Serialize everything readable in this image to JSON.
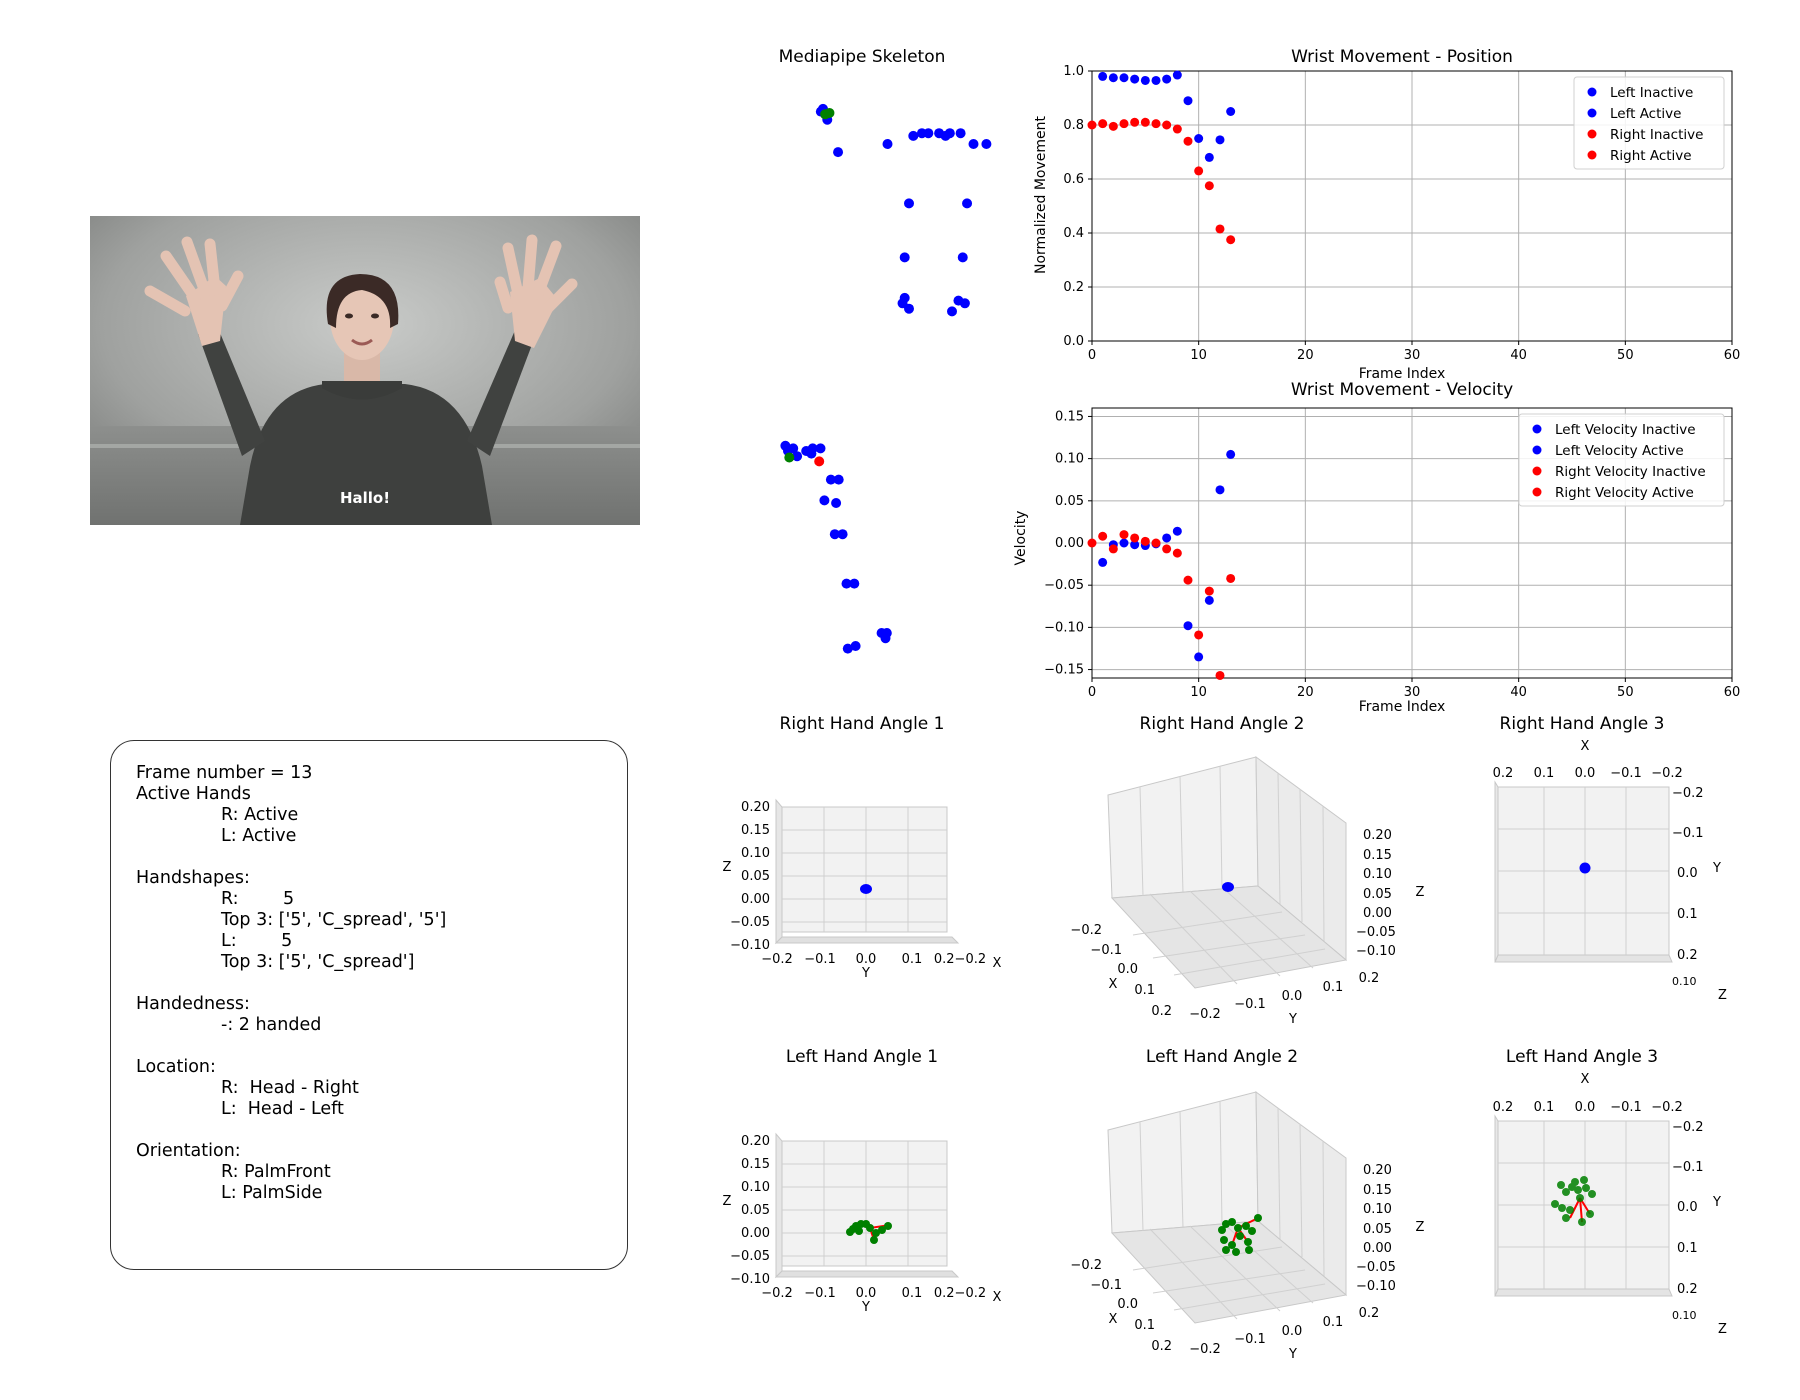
{
  "video": {
    "caption": "Hallo!"
  },
  "info": {
    "frame_number": "Frame number = 13",
    "active_heading": "Active Hands",
    "active_r": "R: Active",
    "active_l": "L: Active",
    "handshapes_heading": "Handshapes:",
    "hs_r": "R:        5",
    "hs_r_top3": "Top 3: ['5', 'C_spread', '5']",
    "hs_l": "L:        5",
    "hs_l_top3": "Top 3: ['5', 'C_spread']",
    "handedness_heading": "Handedness:",
    "handedness_value": "-: 2 handed",
    "location_heading": "Location:",
    "loc_r": "R:  Head - Right",
    "loc_l": "L:  Head - Left",
    "orientation_heading": "Orientation:",
    "ori_r": "R: PalmFront",
    "ori_l": "L: PalmSide"
  },
  "colors": {
    "blue": "#0000ff",
    "red": "#ff0000",
    "green": "#008000",
    "grid": "#b0b0b0",
    "pane": "#f2f2f2"
  },
  "skeleton": {
    "title": "Mediapipe Skeleton",
    "front_points": [
      [
        0.19,
        0.08
      ],
      [
        0.2,
        0.07
      ],
      [
        0.22,
        0.11
      ],
      [
        0.21,
        0.09
      ],
      [
        0.27,
        0.23
      ],
      [
        0.5,
        0.2
      ],
      [
        0.62,
        0.17
      ],
      [
        0.66,
        0.16
      ],
      [
        0.69,
        0.16
      ],
      [
        0.74,
        0.16
      ],
      [
        0.77,
        0.17
      ],
      [
        0.79,
        0.16
      ],
      [
        0.84,
        0.16
      ],
      [
        0.9,
        0.2
      ],
      [
        0.96,
        0.2
      ],
      [
        1.06,
        0.14
      ],
      [
        1.24,
        0.37
      ],
      [
        1.1,
        0.27
      ],
      [
        0.6,
        0.42
      ],
      [
        0.87,
        0.42
      ],
      [
        0.58,
        0.62
      ],
      [
        0.85,
        0.62
      ],
      [
        0.58,
        0.77
      ],
      [
        0.57,
        0.79
      ],
      [
        0.6,
        0.81
      ],
      [
        0.83,
        0.78
      ],
      [
        0.86,
        0.79
      ],
      [
        0.8,
        0.82
      ],
      [
        1.37,
        0.15
      ],
      [
        1.43,
        0.12
      ]
    ],
    "front_green": [
      [
        0.21,
        0.09
      ],
      [
        0.23,
        0.085
      ]
    ],
    "front_red": [
      [
        1.44,
        0.13
      ]
    ],
    "side_points": [
      [
        0.08,
        0.08
      ],
      [
        0.1,
        0.1
      ],
      [
        0.14,
        0.09
      ],
      [
        0.17,
        0.12
      ],
      [
        0.24,
        0.1
      ],
      [
        0.28,
        0.11
      ],
      [
        0.29,
        0.09
      ],
      [
        0.35,
        0.09
      ],
      [
        0.43,
        0.21
      ],
      [
        0.49,
        0.21
      ],
      [
        0.38,
        0.29
      ],
      [
        0.47,
        0.3
      ],
      [
        0.52,
        0.42
      ],
      [
        0.46,
        0.42
      ],
      [
        0.55,
        0.61
      ],
      [
        0.61,
        0.61
      ],
      [
        0.56,
        0.86
      ],
      [
        0.62,
        0.85
      ],
      [
        0.82,
        0.8
      ],
      [
        0.85,
        0.82
      ],
      [
        0.86,
        0.8
      ]
    ],
    "side_green": [
      [
        0.11,
        0.125
      ]
    ],
    "side_red": [
      [
        0.34,
        0.14
      ]
    ]
  },
  "chart_data": [
    {
      "type": "scatter",
      "title": "Wrist Movement - Position",
      "xlabel": "Frame Index",
      "ylabel": "Normalized Movement",
      "xlim": [
        0,
        60
      ],
      "ylim": [
        0,
        1
      ],
      "xticks": [
        0,
        10,
        20,
        30,
        40,
        50,
        60
      ],
      "yticks": [
        0.0,
        0.2,
        0.4,
        0.6,
        0.8,
        1.0
      ],
      "legend": "top-right",
      "series": [
        {
          "name": "Left Inactive",
          "color": "#0000ff",
          "x": [
            1,
            2,
            3,
            4,
            5,
            6,
            7,
            8
          ],
          "y": [
            0.98,
            0.975,
            0.975,
            0.97,
            0.965,
            0.965,
            0.97,
            0.985
          ]
        },
        {
          "name": "Left Active",
          "color": "#0000ff",
          "x": [
            9,
            10,
            11,
            12,
            13
          ],
          "y": [
            0.89,
            0.75,
            0.68,
            0.745,
            0.85
          ]
        },
        {
          "name": "Right Inactive",
          "color": "#ff0000",
          "x": [
            0,
            1,
            2,
            3,
            4,
            5,
            6,
            7,
            8
          ],
          "y": [
            0.8,
            0.805,
            0.795,
            0.805,
            0.81,
            0.81,
            0.805,
            0.8,
            0.785
          ]
        },
        {
          "name": "Right Active",
          "color": "#ff0000",
          "x": [
            9,
            10,
            11,
            12,
            13
          ],
          "y": [
            0.74,
            0.63,
            0.575,
            0.415,
            0.375
          ]
        }
      ]
    },
    {
      "type": "scatter",
      "title": "Wrist Movement - Velocity",
      "xlabel": "Frame Index",
      "ylabel": "Velocity",
      "xlim": [
        0,
        60
      ],
      "ylim": [
        -0.16,
        0.16
      ],
      "xticks": [
        0,
        10,
        20,
        30,
        40,
        50,
        60
      ],
      "yticks": [
        -0.15,
        -0.1,
        -0.05,
        0.0,
        0.05,
        0.1,
        0.15
      ],
      "legend": "top-right",
      "series": [
        {
          "name": "Left Velocity Inactive",
          "color": "#0000ff",
          "x": [
            1,
            2,
            3,
            4,
            5,
            6,
            7,
            8
          ],
          "y": [
            -0.023,
            -0.002,
            0.0,
            -0.002,
            -0.003,
            -0.001,
            0.006,
            0.014
          ]
        },
        {
          "name": "Left Velocity Active",
          "color": "#0000ff",
          "x": [
            9,
            10,
            11,
            12,
            13
          ],
          "y": [
            -0.098,
            -0.135,
            -0.068,
            0.063,
            0.105
          ]
        },
        {
          "name": "Right Velocity Inactive",
          "color": "#ff0000",
          "x": [
            0,
            1,
            2,
            3,
            4,
            5,
            6,
            7,
            8
          ],
          "y": [
            0.0,
            0.008,
            -0.007,
            0.01,
            0.006,
            0.002,
            0.0,
            -0.007,
            -0.012
          ]
        },
        {
          "name": "Right Velocity Active",
          "color": "#ff0000",
          "x": [
            9,
            10,
            11,
            12,
            13
          ],
          "y": [
            -0.044,
            -0.109,
            -0.057,
            -0.157,
            -0.042
          ]
        }
      ]
    }
  ],
  "hand_panels": {
    "right1": {
      "title": "Right Hand Angle 1",
      "y_label": "Y",
      "z_label": "Z",
      "x_label": "X",
      "h_ticks": [
        "−0.2",
        "−0.1",
        "0.0",
        "0.1",
        "0.2"
      ],
      "z_ticks": [
        "0.20",
        "0.15",
        "0.10",
        "0.05",
        "0.00",
        "−0.05",
        "−0.10"
      ],
      "edge_ticks": "0.2−0.2"
    },
    "right2": {
      "title": "Right Hand Angle 2",
      "x_label": "X",
      "y_label": "Y",
      "z_label": "Z",
      "x_ticks": [
        "−0.2",
        "−0.1",
        "0.0",
        "0.1",
        "0.2"
      ],
      "y_ticks": [
        "−0.2",
        "−0.1",
        "0.0",
        "0.1",
        "0.2"
      ],
      "z_ticks": [
        "0.20",
        "0.15",
        "0.10",
        "0.05",
        "0.00",
        "−0.05",
        "−0.10"
      ]
    },
    "right3": {
      "title": "Right Hand Angle 3",
      "x_label": "X",
      "y_label": "Y",
      "z_label": "Z",
      "x_ticks": [
        "0.2",
        "0.1",
        "0.0",
        "−0.1",
        "−0.2"
      ],
      "y_ticks": [
        "−0.2",
        "−0.1",
        "0.0",
        "0.1",
        "0.2"
      ]
    },
    "left1": {
      "title": "Left Hand Angle 1",
      "y_label": "Y",
      "z_label": "Z",
      "x_label": "X",
      "h_ticks": [
        "−0.2",
        "−0.1",
        "0.0",
        "0.1",
        "0.2"
      ],
      "z_ticks": [
        "0.20",
        "0.15",
        "0.10",
        "0.05",
        "0.00",
        "−0.05",
        "−0.10"
      ],
      "edge_ticks": "0.2−0.2"
    },
    "left2": {
      "title": "Left Hand Angle 2",
      "x_label": "X",
      "y_label": "Y",
      "z_label": "Z",
      "x_ticks": [
        "−0.2",
        "−0.1",
        "0.0",
        "0.1",
        "0.2"
      ],
      "y_ticks": [
        "−0.2",
        "−0.1",
        "0.0",
        "0.1",
        "0.2"
      ],
      "z_ticks": [
        "0.20",
        "0.15",
        "0.10",
        "0.05",
        "0.00",
        "−0.05",
        "−0.10"
      ]
    },
    "left3": {
      "title": "Left Hand Angle 3",
      "x_label": "X",
      "y_label": "Y",
      "z_label": "Z",
      "x_ticks": [
        "0.2",
        "0.1",
        "0.0",
        "−0.1",
        "−0.2"
      ],
      "y_ticks": [
        "−0.2",
        "−0.1",
        "0.0",
        "0.1",
        "0.2"
      ]
    }
  }
}
